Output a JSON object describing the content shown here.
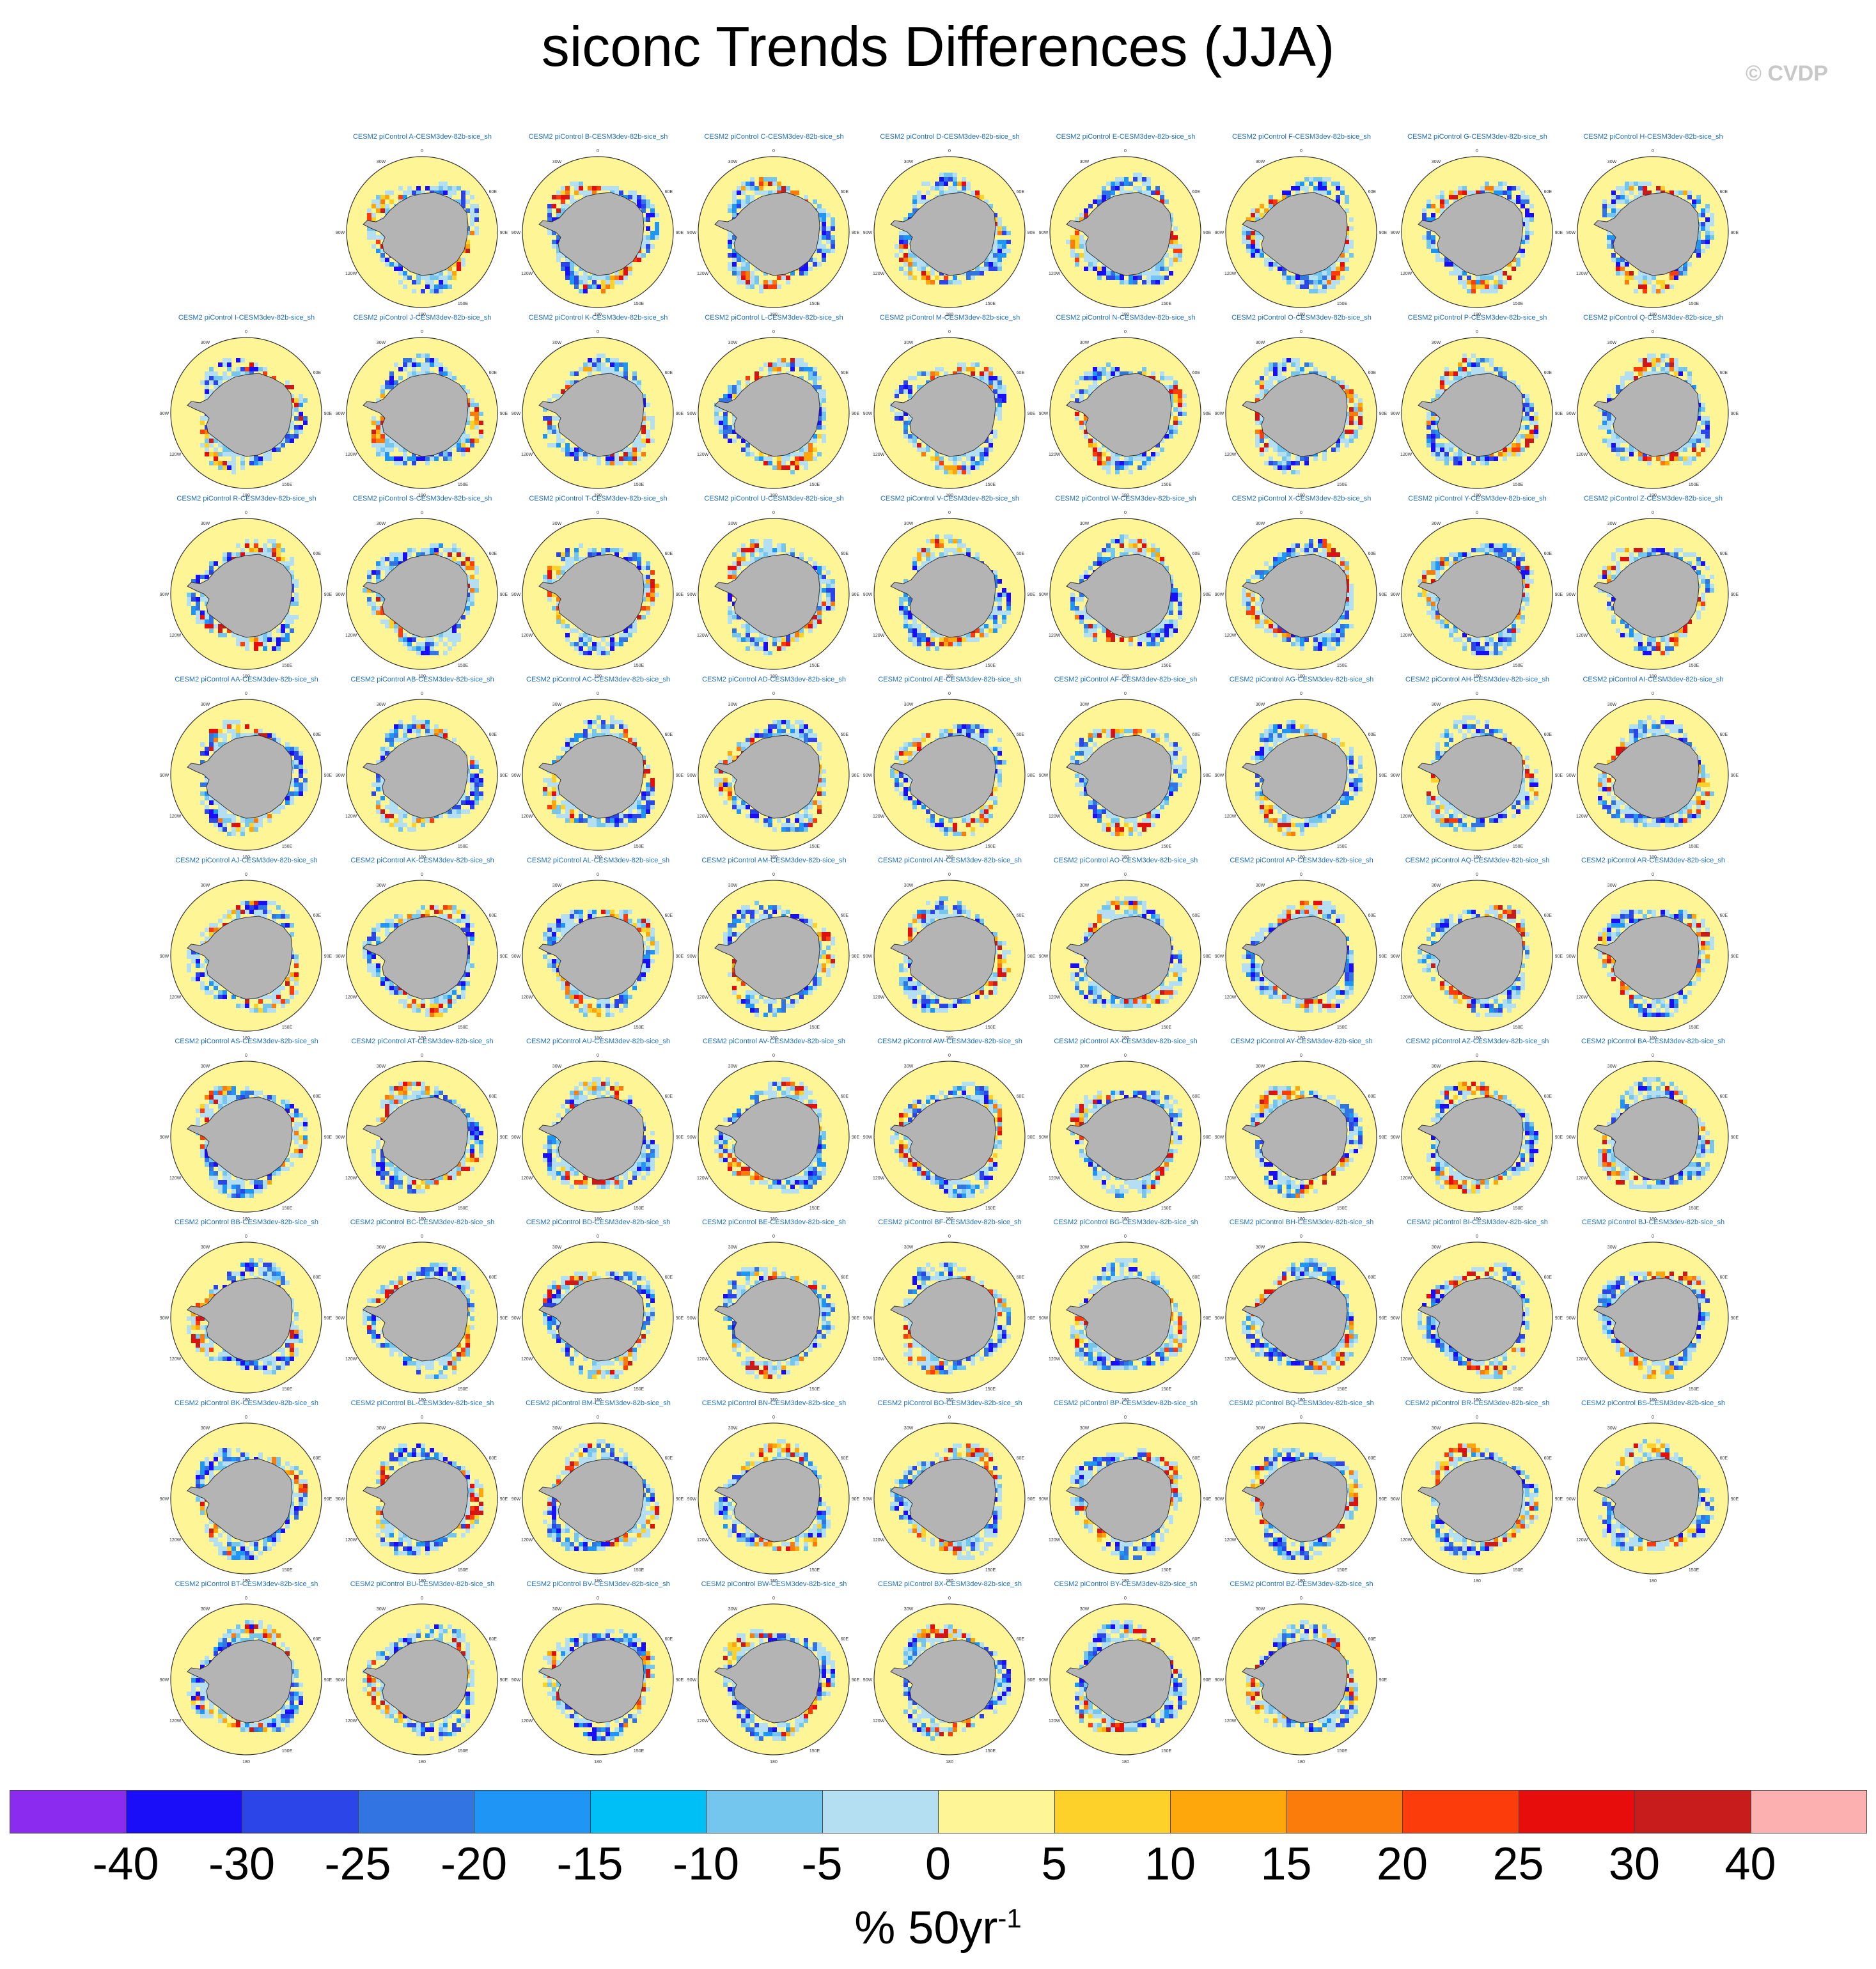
{
  "chart_data": {
    "type": "panel_maps",
    "title": "siconc Trends Differences (JJA)",
    "credit": "© CVDP",
    "panel_prefix": "CESM2 piControl ",
    "panel_suffix": "-CESM3dev-82b-sice_sh",
    "panels": [
      "A",
      "B",
      "C",
      "D",
      "E",
      "F",
      "G",
      "H",
      "I",
      "J",
      "K",
      "L",
      "M",
      "N",
      "O",
      "P",
      "Q",
      "R",
      "S",
      "T",
      "U",
      "V",
      "W",
      "X",
      "Y",
      "Z",
      "AA",
      "AB",
      "AC",
      "AD",
      "AE",
      "AF",
      "AG",
      "AH",
      "AI",
      "AJ",
      "AK",
      "AL",
      "AM",
      "AN",
      "AO",
      "AP",
      "AQ",
      "AR",
      "AS",
      "AT",
      "AU",
      "AV",
      "AW",
      "AX",
      "AY",
      "AZ",
      "BA",
      "BB",
      "BC",
      "BD",
      "BE",
      "BF",
      "BG",
      "BH",
      "BI",
      "BJ",
      "BK",
      "BL",
      "BM",
      "BN",
      "BO",
      "BP",
      "BQ",
      "BR",
      "BS",
      "BT",
      "BU",
      "BV",
      "BW",
      "BX",
      "BY",
      "BZ"
    ],
    "map_lon_labels": [
      "0",
      "30E",
      "60E",
      "90E",
      "120E",
      "150E",
      "180",
      "150W",
      "120W",
      "90W",
      "60W",
      "30W"
    ],
    "colorbar": {
      "ticks": [
        "-40",
        "-30",
        "-25",
        "-20",
        "-15",
        "-10",
        "-5",
        "0",
        "5",
        "10",
        "15",
        "20",
        "25",
        "30",
        "40"
      ],
      "colors": [
        "#8b2bf0",
        "#1a0df7",
        "#2b45e8",
        "#3174e2",
        "#1f95f5",
        "#00bff6",
        "#74c6ef",
        "#b4def1",
        "#fef596",
        "#fdd12a",
        "#fda70c",
        "#fc7c0b",
        "#fc3c0a",
        "#e80d0d",
        "#c81b1b",
        "#fcb0b0"
      ],
      "units": "% 50yr",
      "units_exp": "-1"
    }
  }
}
